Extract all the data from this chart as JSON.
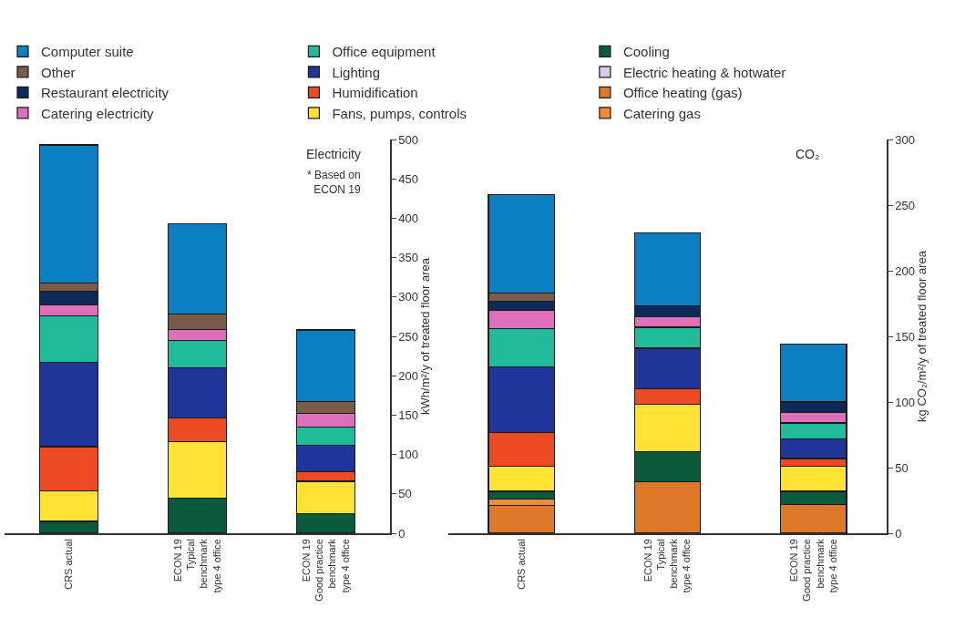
{
  "chart_data": [
    {
      "type": "bar",
      "stacked": true,
      "legend": "top",
      "categories": [
        "CRS actual",
        "ECON 19\nTypical\nbenchmark\ntype 4 office",
        "ECON 19\nGood practice\nbenchmark\ntype 4 office"
      ],
      "ylim": [
        0,
        500
      ],
      "yticks": [
        0,
        50,
        100,
        150,
        200,
        250,
        300,
        350,
        400,
        450,
        500
      ],
      "ylabel": "kWh/m²/y of treated floor area",
      "annotations": [
        "Electricity",
        "* Based on\nECON 19"
      ],
      "series": [
        {
          "name": "Cooling",
          "color": "#0b5a3e",
          "values": [
            15,
            45,
            25
          ]
        },
        {
          "name": "Electric heating & hotwater",
          "color": "#d9cbe6",
          "values": [
            null,
            null,
            null
          ]
        },
        {
          "name": "Fans, pumps, controls",
          "color": "#ffe233",
          "values": [
            39,
            71,
            41
          ]
        },
        {
          "name": "Humidification",
          "color": "#ee4a24",
          "values": [
            56,
            30,
            12
          ]
        },
        {
          "name": "Lighting",
          "color": "#20359a",
          "values": [
            107,
            64,
            34
          ]
        },
        {
          "name": "Office equipment",
          "color": "#1fbb9b",
          "values": [
            59,
            35,
            23
          ]
        },
        {
          "name": "Catering electricity",
          "color": "#de6fba",
          "values": [
            14,
            14,
            17
          ]
        },
        {
          "name": "Restaurant electricity",
          "color": "#0e2a5a",
          "values": [
            17,
            null,
            null
          ]
        },
        {
          "name": "Other",
          "color": "#7a5a48",
          "values": [
            11,
            19,
            15
          ]
        },
        {
          "name": "Computer suite",
          "color": "#0a80c2",
          "values": [
            175,
            115,
            91
          ]
        }
      ]
    },
    {
      "type": "bar",
      "stacked": true,
      "legend": "top",
      "categories": [
        "CRS actual",
        "ECON 19\nTypical\nbenchmark\ntype 4 office",
        "ECON 19\nGood practice\nbenchmark\ntype 4 office"
      ],
      "ylim": [
        0,
        300
      ],
      "yticks": [
        0,
        50,
        100,
        150,
        200,
        250,
        300
      ],
      "ylabel": "kg CO₂/m²/y of treated floor area",
      "annotations": [
        "CO₂"
      ],
      "series": [
        {
          "name": "Office heating (gas)",
          "color": "#e0782a",
          "values": [
            21,
            39,
            22
          ]
        },
        {
          "name": "Catering gas",
          "color": "#f28a36",
          "values": [
            5,
            null,
            null
          ]
        },
        {
          "color": "#0b5a3e",
          "values": [
            6,
            23,
            10
          ]
        },
        {
          "color": "#ffe233",
          "values": [
            19,
            36,
            19
          ]
        },
        {
          "color": "#ee4a24",
          "values": [
            26,
            12,
            6
          ]
        },
        {
          "color": "#20359a",
          "values": [
            50,
            31,
            15
          ]
        },
        {
          "color": "#1fbb9b",
          "values": [
            29,
            16,
            12
          ]
        },
        {
          "color": "#de6fba",
          "values": [
            14,
            8,
            8
          ]
        },
        {
          "color": "#0e2a5a",
          "values": [
            7,
            8,
            8
          ]
        },
        {
          "color": "#7a5a48",
          "values": [
            6,
            null,
            null
          ]
        },
        {
          "color": "#0a80c2",
          "values": [
            75,
            56,
            44
          ]
        }
      ]
    }
  ]
}
